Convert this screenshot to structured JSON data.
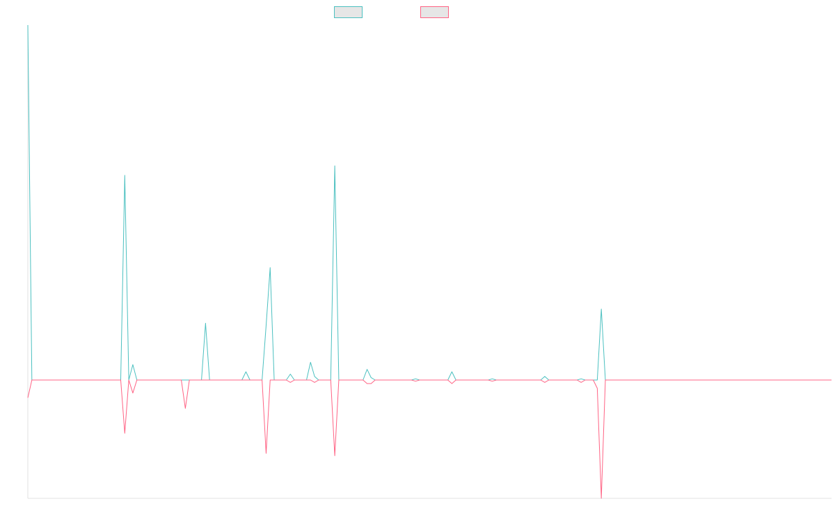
{
  "chart_data": {
    "type": "line",
    "title": "",
    "xlabel": "",
    "ylabel": "",
    "grid": false,
    "legend": "top-center",
    "ylim": [
      -100,
      300
    ],
    "x_count": 200,
    "series": [
      {
        "color": "#4bc0c0",
        "fill": "#e6e6e6",
        "spikes": [
          [
            0,
            300
          ],
          [
            24,
            173
          ],
          [
            26,
            13
          ],
          [
            44,
            48
          ],
          [
            54,
            7
          ],
          [
            59,
            46
          ],
          [
            60,
            95
          ],
          [
            65,
            5
          ],
          [
            70,
            15
          ],
          [
            71,
            3
          ],
          [
            76,
            181
          ],
          [
            84,
            9
          ],
          [
            85,
            2
          ],
          [
            96,
            1
          ],
          [
            105,
            7
          ],
          [
            115,
            1
          ],
          [
            128,
            3
          ],
          [
            137,
            1
          ],
          [
            142,
            60
          ]
        ]
      },
      {
        "color": "#ff6384",
        "fill": "#e6e6e6",
        "spikes": [
          [
            0,
            -15
          ],
          [
            24,
            -45
          ],
          [
            26,
            -11
          ],
          [
            39,
            -24
          ],
          [
            59,
            -62
          ],
          [
            65,
            -2
          ],
          [
            71,
            -2
          ],
          [
            76,
            -64
          ],
          [
            84,
            -3
          ],
          [
            85,
            -3
          ],
          [
            96,
            -1
          ],
          [
            105,
            -3
          ],
          [
            115,
            -1
          ],
          [
            128,
            -2
          ],
          [
            137,
            -2
          ],
          [
            141,
            -7
          ],
          [
            142,
            -100
          ]
        ]
      }
    ]
  }
}
